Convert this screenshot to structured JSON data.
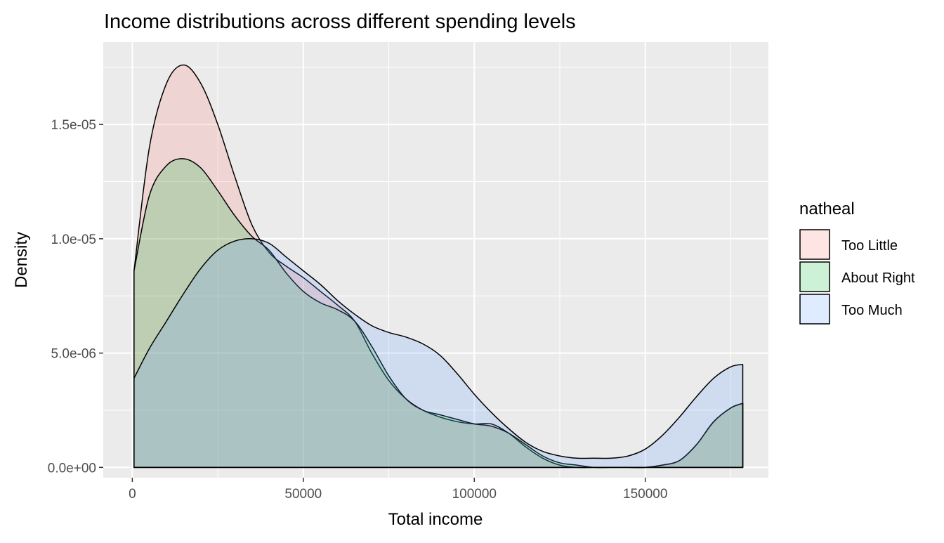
{
  "chart_data": {
    "type": "area",
    "title": "Income distributions across different spending levels",
    "xlabel": "Total income",
    "ylabel": "Density",
    "xlim": [
      -8500,
      186000
    ],
    "ylim": [
      -4.5e-07,
      1.86e-05
    ],
    "x_ticks": [
      0,
      50000,
      100000,
      150000
    ],
    "x_tick_labels": [
      "0",
      "50000",
      "100000",
      "150000"
    ],
    "y_ticks": [
      0,
      5e-06,
      1e-05,
      1.5e-05
    ],
    "y_tick_labels": [
      "0.0e+00",
      "5.0e-06",
      "1.0e-05",
      "1.5e-05"
    ],
    "grid": true,
    "legend": {
      "title": "natheal",
      "position": "right"
    },
    "series": [
      {
        "name": "Too Little",
        "color": "#F8766D",
        "x": [
          500,
          5000,
          10000,
          15000,
          20000,
          25000,
          30000,
          35000,
          40000,
          45000,
          50000,
          55000,
          60000,
          65000,
          70000,
          75000,
          80000,
          85000,
          90000,
          95000,
          100000,
          105000,
          110000,
          115000,
          120000,
          125000,
          130000,
          135000,
          140000,
          145000,
          150000,
          155000,
          160000,
          165000,
          170000,
          175000,
          178500
        ],
        "y": [
          8.6e-06,
          1.4e-05,
          1.68e-05,
          1.76e-05,
          1.68e-05,
          1.5e-05,
          1.27e-05,
          1.06e-05,
          9.4e-06,
          8.8e-06,
          8.3e-06,
          7.7e-06,
          7.1e-06,
          6.4e-06,
          5e-06,
          3.8e-06,
          3e-06,
          2.5e-06,
          2.2e-06,
          2e-06,
          1.9e-06,
          1.9e-06,
          1.5e-06,
          9e-07,
          4e-07,
          1e-07,
          0.0,
          0.0,
          0.0,
          0.0,
          0.0,
          1e-07,
          3e-07,
          1e-06,
          2e-06,
          2.6e-06,
          2.8e-06
        ]
      },
      {
        "name": "About Right",
        "color": "#00BA38",
        "x": [
          500,
          5000,
          10000,
          15000,
          20000,
          25000,
          30000,
          35000,
          40000,
          45000,
          50000,
          55000,
          60000,
          65000,
          70000,
          75000,
          80000,
          85000,
          90000,
          95000,
          100000,
          105000,
          110000,
          115000,
          120000,
          125000,
          130000,
          135000,
          140000,
          145000,
          150000,
          155000,
          160000,
          165000,
          170000,
          175000,
          178500
        ],
        "y": [
          8.6e-06,
          1.19e-05,
          1.32e-05,
          1.35e-05,
          1.31e-05,
          1.21e-05,
          1.1e-05,
          1.01e-05,
          9.5e-06,
          8.5e-06,
          7.7e-06,
          7.2e-06,
          6.9e-06,
          6.4e-06,
          5.3e-06,
          4e-06,
          3e-06,
          2.5e-06,
          2.3e-06,
          2.1e-06,
          1.9e-06,
          1.8e-06,
          1.5e-06,
          1e-06,
          5e-07,
          2e-07,
          1e-07,
          0.0,
          0.0,
          0.0,
          0.0,
          1e-07,
          3e-07,
          1e-06,
          2e-06,
          2.6e-06,
          2.8e-06
        ]
      },
      {
        "name": "Too Much",
        "color": "#619CFF",
        "x": [
          500,
          5000,
          10000,
          15000,
          20000,
          25000,
          30000,
          35000,
          40000,
          45000,
          50000,
          55000,
          60000,
          65000,
          70000,
          75000,
          80000,
          85000,
          90000,
          95000,
          100000,
          105000,
          110000,
          115000,
          120000,
          125000,
          130000,
          135000,
          140000,
          145000,
          150000,
          155000,
          160000,
          165000,
          170000,
          175000,
          178500
        ],
        "y": [
          3.9e-06,
          5.2e-06,
          6.4e-06,
          7.6e-06,
          8.7e-06,
          9.5e-06,
          9.9e-06,
          1e-05,
          9.8e-06,
          9.2e-06,
          8.6e-06,
          8e-06,
          7.3e-06,
          6.7e-06,
          6.2e-06,
          5.9e-06,
          5.7e-06,
          5.4e-06,
          4.9e-06,
          4.1e-06,
          3.2e-06,
          2.4e-06,
          1.7e-06,
          1.1e-06,
          7e-07,
          5e-07,
          4e-07,
          4e-07,
          4e-07,
          5e-07,
          8e-07,
          1.4e-06,
          2.2e-06,
          3.1e-06,
          3.9e-06,
          4.4e-06,
          4.5e-06
        ]
      }
    ]
  }
}
